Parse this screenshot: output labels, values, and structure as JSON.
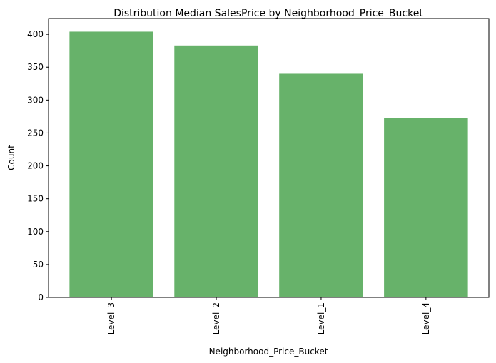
{
  "chart_data": {
    "type": "bar",
    "title": "Distribution Median SalesPrice by Neighborhood_Price_Bucket",
    "xlabel": "Neighborhood_Price_Bucket",
    "ylabel": "Count",
    "categories": [
      "Level_3",
      "Level_2",
      "Level_1",
      "Level_4"
    ],
    "values": [
      404,
      383,
      340,
      273
    ],
    "ylim": [
      0,
      424
    ],
    "yticks": [
      0,
      50,
      100,
      150,
      200,
      250,
      300,
      350,
      400
    ],
    "bar_color": "#67b26a",
    "grid": false,
    "legend": "none"
  }
}
